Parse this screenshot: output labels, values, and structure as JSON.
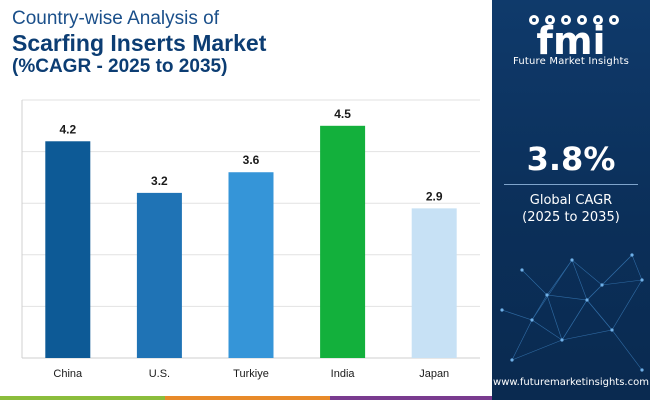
{
  "title": {
    "line1": "Country-wise Analysis of",
    "line2": "Scarfing Inserts Market",
    "line3": "(%CAGR - 2025 to 2035)"
  },
  "chart_data": {
    "type": "bar",
    "categories": [
      "China",
      "U.S.",
      "Turkiye",
      "India",
      "Japan"
    ],
    "values": [
      4.2,
      3.2,
      3.6,
      4.5,
      2.9
    ],
    "colors": [
      "#0d5a96",
      "#1f73b5",
      "#3595d8",
      "#13b03c",
      "#c7e1f5"
    ],
    "ylim": [
      0,
      5
    ],
    "grid": true,
    "title": "Scarfing Inserts Market",
    "xlabel": "",
    "ylabel": ""
  },
  "brand": {
    "logo_text": "fmi",
    "name": "Future Market Insights",
    "website": "www.futuremarketinsights.com"
  },
  "summary": {
    "value": "3.8%",
    "label_line1": "Global CAGR",
    "label_line2": "(2025 to 2035)"
  },
  "colors": {
    "panel": "#0f3a6b",
    "title_dark": "#0c3d73",
    "bar_stripe": [
      "#8bbd3c",
      "#e88a2a",
      "#7a3b8f"
    ]
  }
}
